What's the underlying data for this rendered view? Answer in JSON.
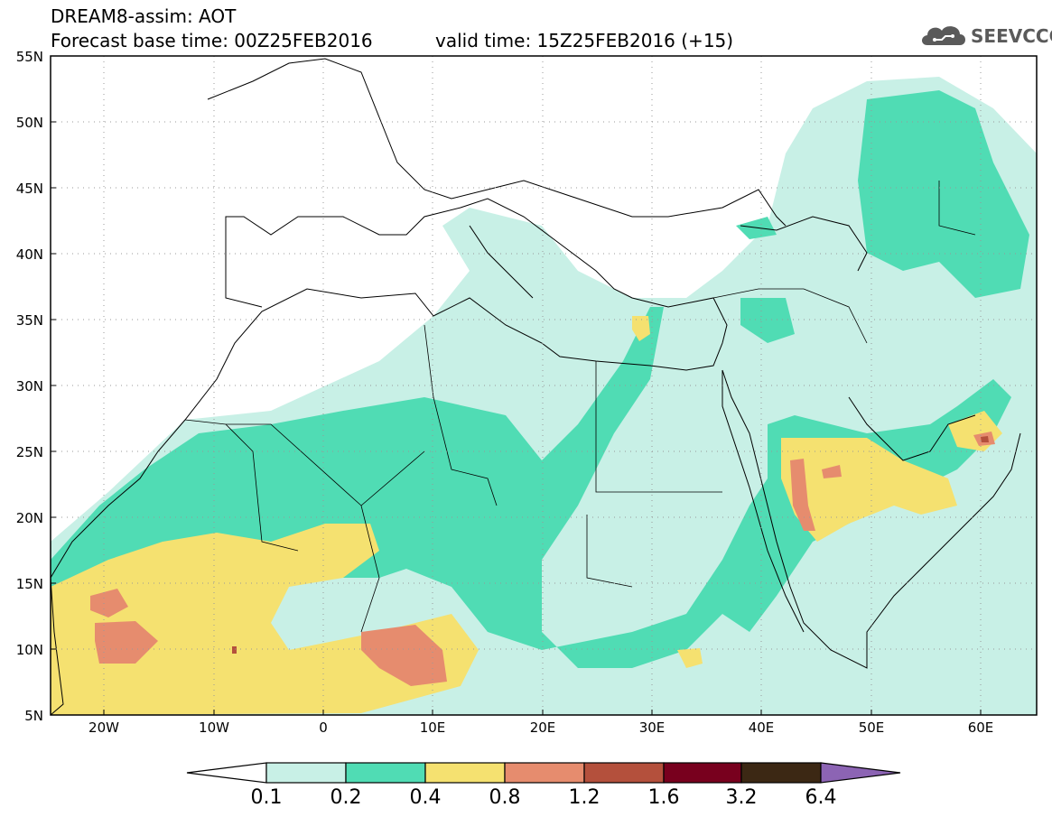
{
  "header": {
    "title_line1": "DREAM8-assim: AOT",
    "title_line2": "Forecast base time: 00Z25FEB2016",
    "valid_time": "valid time: 15Z25FEB2016 (+15)",
    "logo_text": "SEEVCCC"
  },
  "axes": {
    "lat_labels": [
      "55N",
      "50N",
      "45N",
      "40N",
      "35N",
      "30N",
      "25N",
      "20N",
      "15N",
      "10N",
      "5N"
    ],
    "lon_labels": [
      "20W",
      "10W",
      "0",
      "10E",
      "20E",
      "30E",
      "40E",
      "50E",
      "60E"
    ]
  },
  "colorbar": {
    "labels": [
      "0.1",
      "0.2",
      "0.4",
      "0.8",
      "1.2",
      "1.6",
      "3.2",
      "6.4"
    ],
    "colors": [
      "#ffffff",
      "#c8f0e6",
      "#50dcb4",
      "#f5e170",
      "#e68c6e",
      "#b4503c",
      "#78001e",
      "#3c2814",
      "#8c64b4"
    ]
  },
  "fill_colors": {
    "level_0_1": "#c8f0e6",
    "level_0_2": "#50dcb4",
    "level_0_4": "#f5e170",
    "level_0_8": "#e68c6e",
    "level_1_2": "#b4503c"
  }
}
